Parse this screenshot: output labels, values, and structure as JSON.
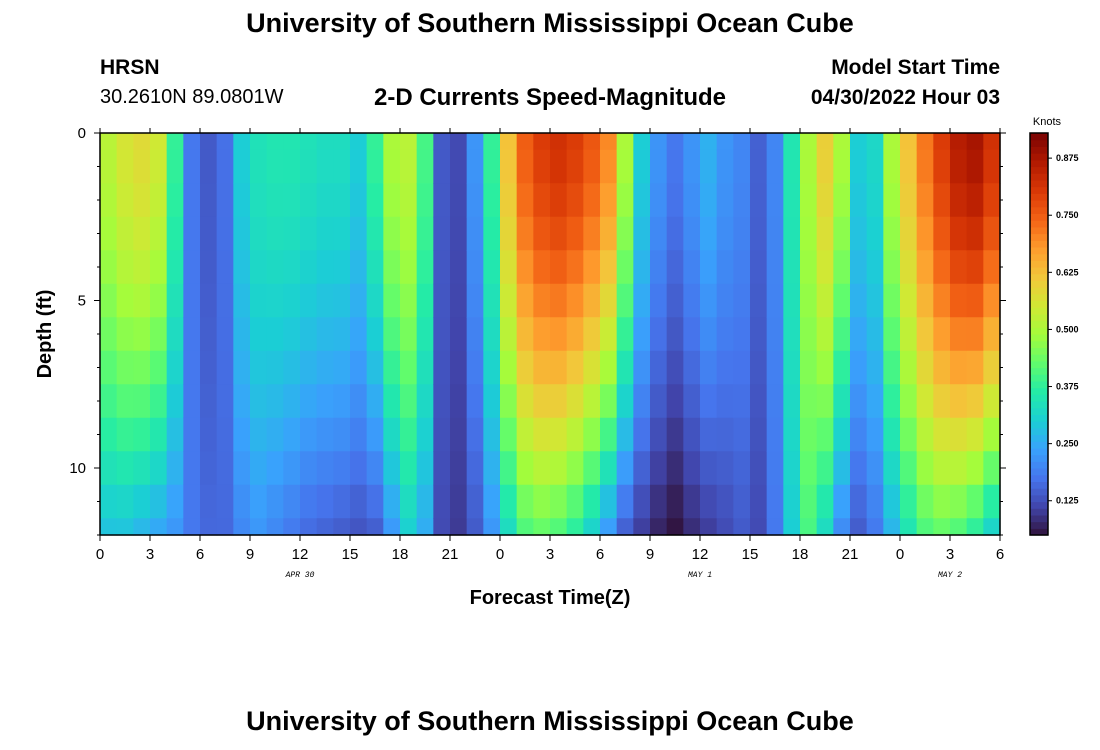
{
  "header": {
    "title": "University of Southern Mississippi Ocean Cube",
    "station": "HRSN",
    "coordinates": "30.2610N  89.0801W",
    "subtitle": "2-D Currents Speed-Magnitude",
    "start_label": "Model Start Time",
    "start_value": "04/30/2022 Hour 03"
  },
  "footer": {
    "title": "University of Southern Mississippi Ocean Cube"
  },
  "chart_data": {
    "type": "heatmap",
    "xlabel": "Forecast Time(Z)",
    "ylabel": "Depth (ft)",
    "xlim": [
      0,
      54
    ],
    "ylim": [
      12,
      0
    ],
    "x_ticks": [
      "0",
      "3",
      "6",
      "9",
      "12",
      "15",
      "18",
      "21",
      "0",
      "3",
      "6",
      "9",
      "12",
      "15",
      "18",
      "21",
      "0",
      "3",
      "6"
    ],
    "y_ticks": [
      "0",
      "5",
      "10"
    ],
    "day_labels": [
      {
        "label": "APR 30",
        "hour": 12
      },
      {
        "label": "MAY 1",
        "hour": 36
      },
      {
        "label": "MAY 2",
        "hour": 51
      }
    ],
    "colorbar": {
      "unit": "Knots",
      "range": [
        0.05,
        0.93
      ],
      "ticks": [
        "0.875",
        "0.750",
        "0.625",
        "0.500",
        "0.375",
        "0.250",
        "0.125"
      ],
      "colors": [
        "#30123b",
        "#4145ab",
        "#4675ed",
        "#39a2fc",
        "#1bcfd4",
        "#24eca6",
        "#61fc6c",
        "#a4fc3b",
        "#d1e834",
        "#f3c63a",
        "#fe9b2d",
        "#f36315",
        "#d93806",
        "#b11901",
        "#7a0403"
      ]
    },
    "depth_levels_ft": [
      0,
      0.5,
      1.5,
      2.5,
      3.5,
      4.5,
      5.5,
      6.5,
      7.5,
      8.5,
      9.5,
      10.5,
      11.5,
      12
    ],
    "hours": [
      0,
      1,
      2,
      3,
      4,
      5,
      6,
      7,
      8,
      9,
      10,
      11,
      12,
      13,
      14,
      15,
      16,
      17,
      18,
      19,
      20,
      21,
      22,
      23,
      24,
      25,
      26,
      27,
      28,
      29,
      30,
      31,
      32,
      33,
      34,
      35,
      36,
      37,
      38,
      39,
      40,
      41,
      42,
      43,
      44,
      45,
      46,
      47,
      48,
      49,
      50,
      51,
      52,
      53,
      54
    ],
    "surface_speed_knots": [
      0.52,
      0.56,
      0.58,
      0.55,
      0.38,
      0.18,
      0.14,
      0.17,
      0.3,
      0.34,
      0.35,
      0.35,
      0.34,
      0.33,
      0.33,
      0.3,
      0.38,
      0.5,
      0.52,
      0.4,
      0.14,
      0.12,
      0.22,
      0.38,
      0.62,
      0.75,
      0.8,
      0.82,
      0.8,
      0.76,
      0.7,
      0.5,
      0.3,
      0.22,
      0.18,
      0.22,
      0.26,
      0.22,
      0.2,
      0.15,
      0.2,
      0.35,
      0.5,
      0.6,
      0.5,
      0.3,
      0.32,
      0.5,
      0.62,
      0.72,
      0.8,
      0.86,
      0.88,
      0.82,
      0.7
    ],
    "bottom_speed_knots": [
      0.28,
      0.28,
      0.26,
      0.24,
      0.22,
      0.18,
      0.16,
      0.16,
      0.2,
      0.22,
      0.2,
      0.18,
      0.16,
      0.15,
      0.14,
      0.13,
      0.14,
      0.22,
      0.3,
      0.25,
      0.12,
      0.1,
      0.14,
      0.22,
      0.32,
      0.4,
      0.42,
      0.4,
      0.36,
      0.3,
      0.22,
      0.14,
      0.1,
      0.07,
      0.05,
      0.08,
      0.1,
      0.12,
      0.14,
      0.12,
      0.18,
      0.3,
      0.4,
      0.32,
      0.2,
      0.14,
      0.18,
      0.26,
      0.34,
      0.4,
      0.42,
      0.4,
      0.36,
      0.3,
      0.26
    ]
  }
}
